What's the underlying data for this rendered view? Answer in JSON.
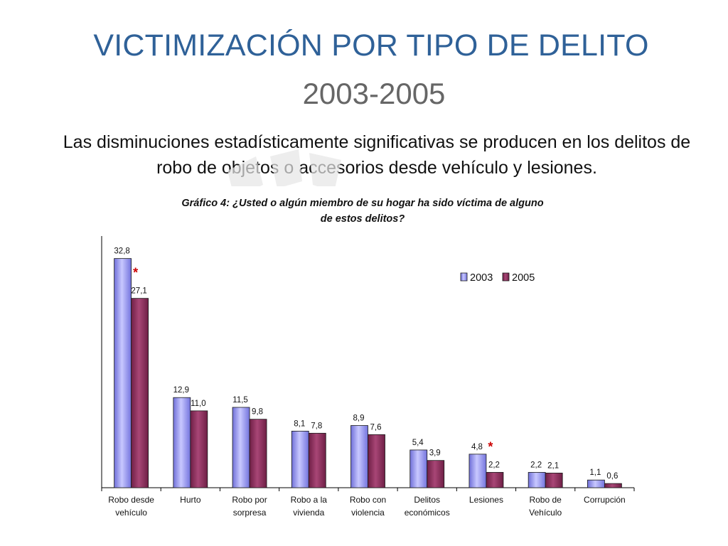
{
  "slide": {
    "title": "VICTIMIZACIÓN POR TIPO DE DELITO",
    "subtitle": "2003-2005",
    "body": "Las disminuciones estadísticamente significativas se producen en los delitos de robo de objetos o accesorios desde vehículo y lesiones."
  },
  "chart_data": {
    "type": "bar",
    "title_line1": "Gráfico 4: ¿Usted o algún miembro de su hogar ha sido víctima de alguno",
    "title_line2": "de estos delitos?",
    "categories": [
      [
        "Robo desde",
        "vehículo"
      ],
      [
        "Hurto",
        ""
      ],
      [
        "Robo por",
        "sorpresa"
      ],
      [
        "Robo a la",
        "vivienda"
      ],
      [
        "Robo con",
        "violencia"
      ],
      [
        "Delitos",
        "económicos"
      ],
      [
        "Lesiones",
        ""
      ],
      [
        "Robo de",
        "Vehículo"
      ],
      [
        "Corrupción",
        ""
      ]
    ],
    "series": [
      {
        "name": "2003",
        "values": [
          32.8,
          12.9,
          11.5,
          8.1,
          8.9,
          5.4,
          4.8,
          2.2,
          1.1
        ],
        "labels": [
          "32,8",
          "12,9",
          "11,5",
          "8,1",
          "8,9",
          "5,4",
          "4,8",
          "2,2",
          "1,1"
        ],
        "color": "#9999ff"
      },
      {
        "name": "2005",
        "values": [
          27.1,
          11.0,
          9.8,
          7.8,
          7.6,
          3.9,
          2.2,
          2.1,
          0.6
        ],
        "labels": [
          "27,1",
          "11,0",
          "9,8",
          "7,8",
          "7,6",
          "3,9",
          "2,2",
          "2,1",
          "0,6"
        ],
        "color": "#993366"
      }
    ],
    "significance_marker": "*",
    "significant_categories": [
      0,
      6
    ],
    "significance_color": "#cc0000",
    "legend_position": "top-right",
    "grid": false
  }
}
